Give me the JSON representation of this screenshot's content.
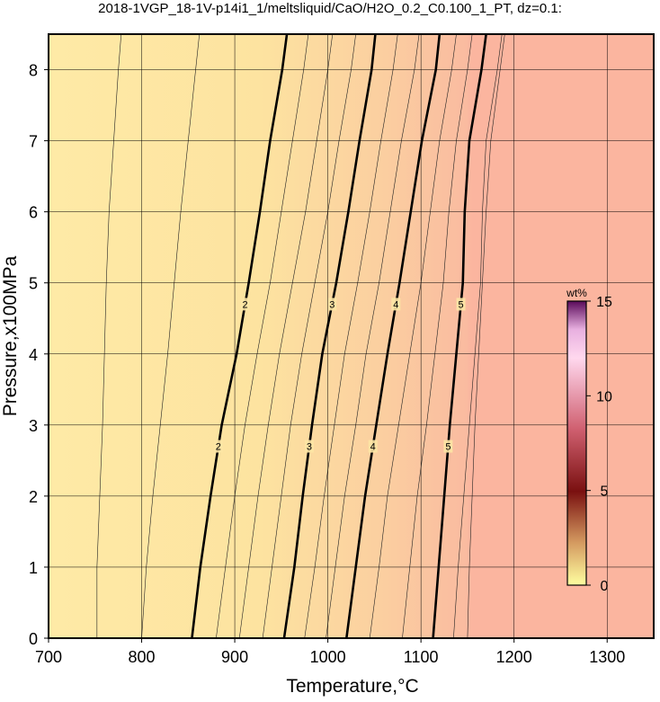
{
  "chart_data": {
    "type": "contour",
    "title": "2018-1VGP_18-1V-p14i1_1/meltsliquid/CaO/H2O_0.2_C0.100_1_PT, dz=0.1:",
    "x_label": "Temperature,°C",
    "y_label": "Pressure,x100MPa",
    "xlim": [
      700,
      1350
    ],
    "ylim": [
      0,
      8.5
    ],
    "xticks": [
      700,
      800,
      900,
      1000,
      1100,
      1200,
      1300
    ],
    "yticks": [
      0,
      1,
      2,
      3,
      4,
      5,
      6,
      7,
      8
    ],
    "grid": true,
    "pressures": [
      0,
      1,
      2,
      3,
      4,
      5,
      6,
      7,
      8,
      8.5
    ],
    "contours": [
      {
        "level": 2,
        "x": [
          854,
          863,
          874,
          886,
          902,
          915,
          927,
          938,
          951,
          956
        ]
      },
      {
        "level": 3,
        "x": [
          953,
          964,
          973,
          983,
          994,
          1009,
          1022,
          1034,
          1047,
          1051
        ]
      },
      {
        "level": 4,
        "x": [
          1020,
          1030,
          1040,
          1052,
          1064,
          1077,
          1089,
          1101,
          1116,
          1120
        ]
      },
      {
        "level": 5,
        "x": [
          1113,
          1119,
          1125,
          1131,
          1138,
          1145,
          1147,
          1152,
          1165,
          1170
        ]
      }
    ],
    "minor_contours": [
      {
        "x": [
          752,
          752,
          755,
          758,
          760,
          762,
          765,
          770,
          775,
          778
        ]
      },
      {
        "x": [
          800,
          805,
          812,
          820,
          828,
          835,
          842,
          850,
          858,
          862
        ]
      },
      {
        "x": [
          880,
          890,
          900,
          911,
          924,
          938,
          950,
          962,
          974,
          979
        ]
      },
      {
        "x": [
          905,
          915,
          925,
          936,
          948,
          962,
          976,
          988,
          1000,
          1005
        ]
      },
      {
        "x": [
          930,
          940,
          950,
          960,
          972,
          986,
          1000,
          1012,
          1025,
          1030
        ]
      },
      {
        "x": [
          975,
          986,
          996,
          1007,
          1018,
          1032,
          1045,
          1057,
          1070,
          1075
        ]
      },
      {
        "x": [
          998,
          1008,
          1018,
          1030,
          1041,
          1055,
          1067,
          1079,
          1093,
          1098
        ]
      },
      {
        "x": [
          1045,
          1055,
          1064,
          1076,
          1088,
          1100,
          1110,
          1120,
          1133,
          1138
        ]
      },
      {
        "x": [
          1080,
          1088,
          1096,
          1106,
          1115,
          1124,
          1130,
          1138,
          1150,
          1155
        ]
      },
      {
        "x": [
          1135,
          1140,
          1146,
          1152,
          1158,
          1164,
          1166,
          1170,
          1182,
          1187
        ]
      },
      {
        "x": [
          1150,
          1152,
          1155,
          1158,
          1162,
          1166,
          1170,
          1175,
          1185,
          1190
        ]
      }
    ],
    "colorbar": {
      "label": "wt%",
      "lim": [
        0,
        15
      ],
      "ticks": [
        0,
        5,
        10,
        15
      ]
    }
  }
}
